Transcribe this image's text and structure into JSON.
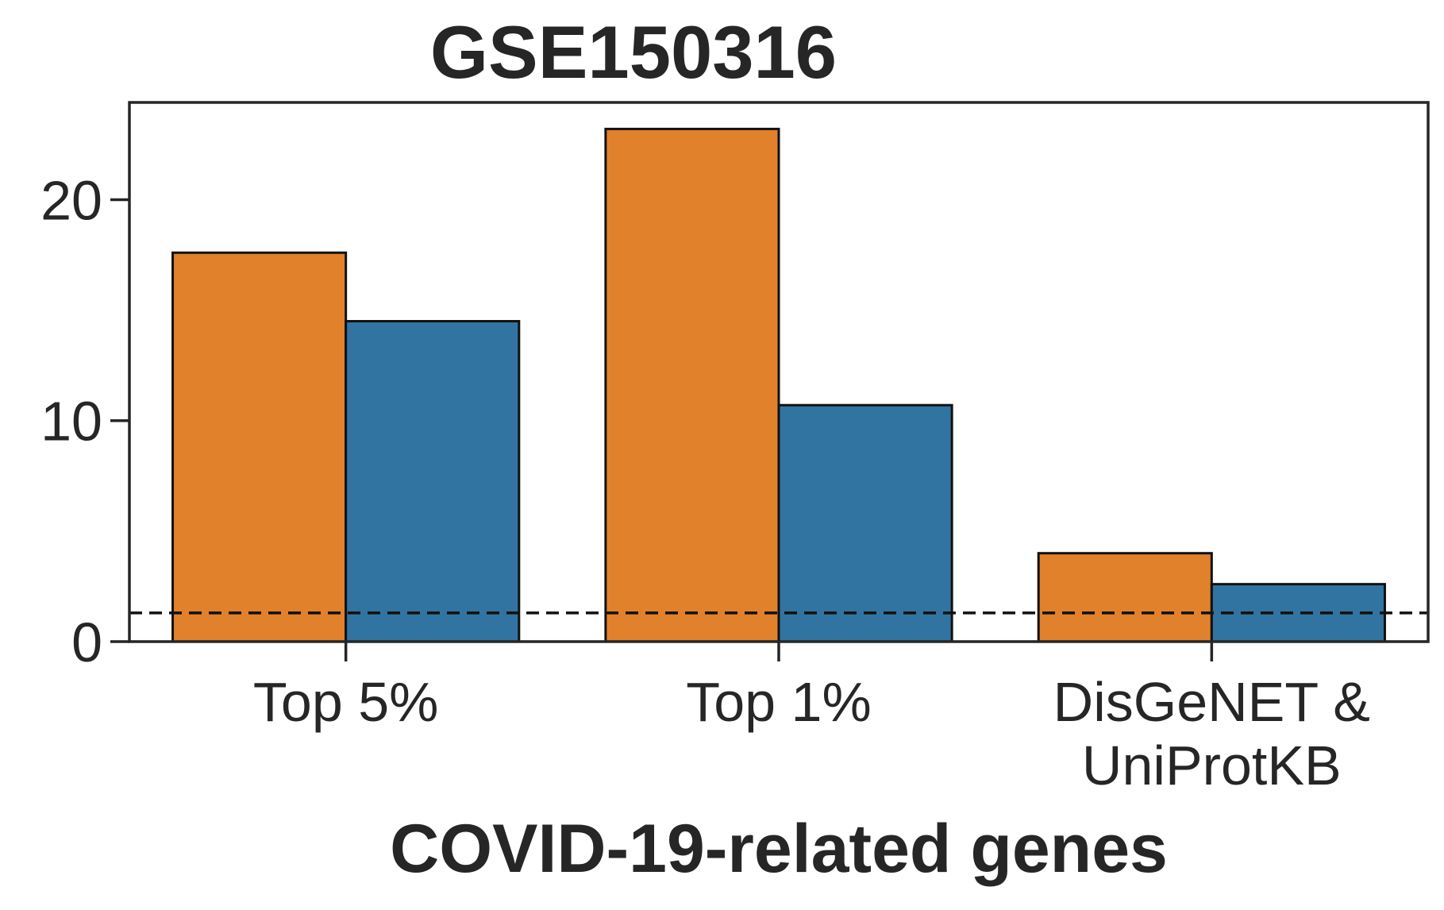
{
  "chart_data": {
    "type": "bar",
    "title": "GSE150316",
    "xlabel": "COVID-19-related genes",
    "ylabel": "",
    "categories": [
      [
        "Top 5%"
      ],
      [
        "Top 1%"
      ],
      [
        "DisGeNET &",
        "UniProtKB"
      ]
    ],
    "series": [
      {
        "color": "#e1812c",
        "values": [
          17.6,
          23.2,
          4.0
        ]
      },
      {
        "color": "#3274a1",
        "values": [
          14.5,
          10.7,
          2.6
        ]
      }
    ],
    "reference_line": {
      "y": 1.3,
      "style": "dashed",
      "color": "#111111"
    },
    "yticks": [
      0,
      10,
      20
    ],
    "ylim": [
      0,
      24.4
    ],
    "grid": false,
    "legend": "none"
  }
}
